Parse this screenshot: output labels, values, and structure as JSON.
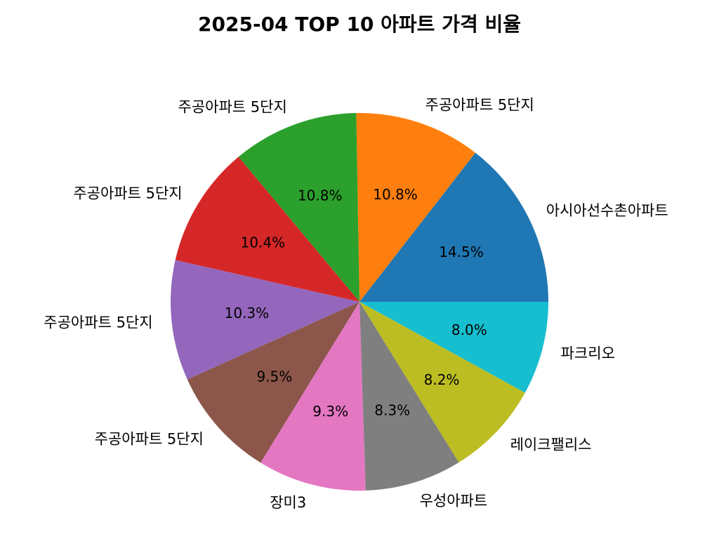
{
  "chart_data": {
    "type": "pie",
    "title": "2025-04 TOP 10 아파트 가격 비율",
    "slices": [
      {
        "label": "아시아선수촌아파트",
        "value": 14.5,
        "pct_label": "14.5%",
        "color": "#1f77b4"
      },
      {
        "label": "주공아파트 5단지",
        "value": 10.8,
        "pct_label": "10.8%",
        "color": "#ff7f0e"
      },
      {
        "label": "주공아파트 5단지",
        "value": 10.8,
        "pct_label": "10.8%",
        "color": "#2ca02c"
      },
      {
        "label": "주공아파트 5단지",
        "value": 10.4,
        "pct_label": "10.4%",
        "color": "#d62728"
      },
      {
        "label": "주공아파트 5단지",
        "value": 10.3,
        "pct_label": "10.3%",
        "color": "#9467bd"
      },
      {
        "label": "주공아파트 5단지",
        "value": 9.5,
        "pct_label": "9.5%",
        "color": "#8c564b"
      },
      {
        "label": "장미3",
        "value": 9.3,
        "pct_label": "9.3%",
        "color": "#e377c2"
      },
      {
        "label": "우성아파트",
        "value": 8.3,
        "pct_label": "8.3%",
        "color": "#7f7f7f"
      },
      {
        "label": "레이크팰리스",
        "value": 8.2,
        "pct_label": "8.2%",
        "color": "#bcbd22"
      },
      {
        "label": "파크리오",
        "value": 8.0,
        "pct_label": "8.0%",
        "color": "#17becf"
      }
    ],
    "start_angle": 0,
    "direction": "counterclockwise",
    "legend": "none"
  }
}
